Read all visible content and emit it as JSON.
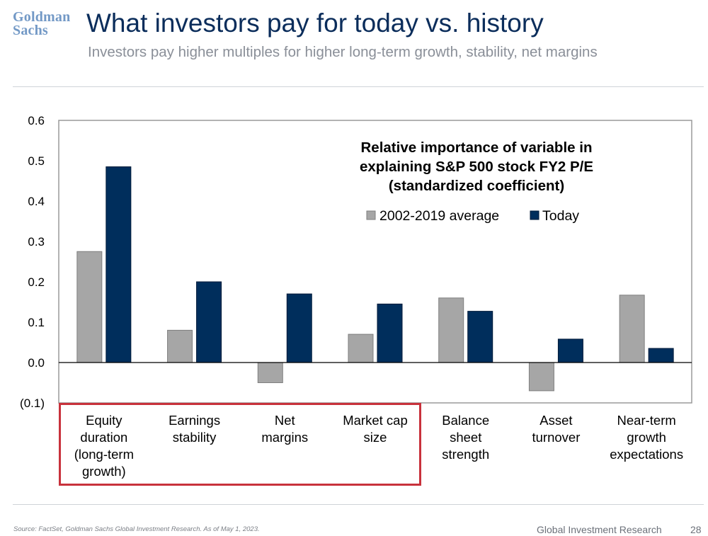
{
  "header": {
    "logo_line1": "Goldman",
    "logo_line2": "Sachs",
    "title": "What investors pay for today vs. history",
    "subtitle": "Investors pay higher multiples for higher long-term growth, stability, net margins"
  },
  "footer": {
    "source": "Source: FactSet, Goldman Sachs Global Investment Research. As of May 1, 2023.",
    "brand": "Global Investment Research",
    "page": "28"
  },
  "colors": {
    "series_average": "#a6a6a6",
    "series_today": "#002e5c",
    "highlight": "#c8323c"
  },
  "chart_data": {
    "type": "bar",
    "title": "Relative importance of variable in explaining S&P 500 stock FY2 P/E (standardized coefficient)",
    "title_lines": [
      "Relative importance of variable in",
      "explaining S&P 500 stock FY2 P/E",
      "(standardized coefficient)"
    ],
    "categories": [
      "Equity duration (long-term growth)",
      "Earnings stability",
      "Net margins",
      "Market cap size",
      "Balance sheet strength",
      "Asset turnover",
      "Near-term growth expectations"
    ],
    "category_lines": [
      [
        "Equity",
        "duration",
        "(long-term",
        "growth)"
      ],
      [
        "Earnings",
        "stability"
      ],
      [
        "Net",
        "margins"
      ],
      [
        "Market cap",
        "size"
      ],
      [
        "Balance",
        "sheet",
        "strength"
      ],
      [
        "Asset",
        "turnover"
      ],
      [
        "Near-term",
        "growth",
        "expectations"
      ]
    ],
    "series": [
      {
        "name": "2002-2019 average",
        "values": [
          0.275,
          0.08,
          -0.05,
          0.07,
          0.16,
          -0.07,
          0.167
        ]
      },
      {
        "name": "Today",
        "values": [
          0.485,
          0.2,
          0.17,
          0.145,
          0.127,
          0.058,
          0.035
        ]
      }
    ],
    "ylim": [
      -0.1,
      0.6
    ],
    "yticks": [
      -0.1,
      0.0,
      0.1,
      0.2,
      0.3,
      0.4,
      0.5,
      0.6
    ],
    "ytick_labels": [
      "(0.1)",
      "0.0",
      "0.1",
      "0.2",
      "0.3",
      "0.4",
      "0.5",
      "0.6"
    ],
    "xlabel": "",
    "ylabel": "",
    "grid": false,
    "legend_position": "top-right",
    "highlighted_categories": [
      0,
      1,
      2,
      3
    ]
  }
}
